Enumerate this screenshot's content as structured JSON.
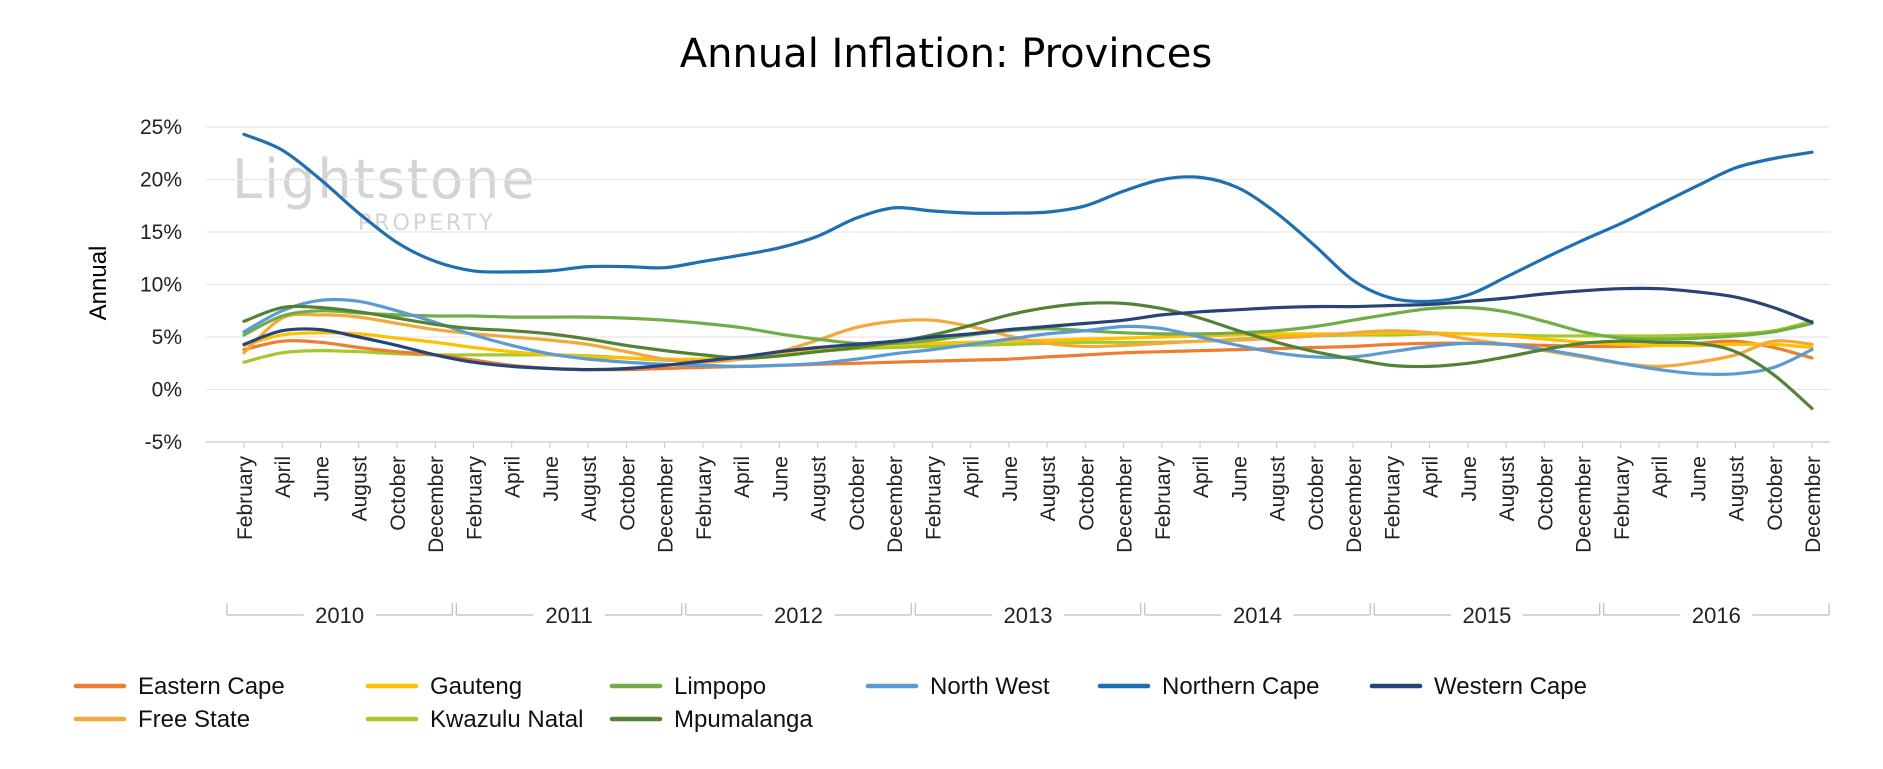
{
  "watermark": {
    "line1": "Lightstone",
    "line2": "PROPERTY"
  },
  "chart_data": {
    "type": "line",
    "title": "Annual Inflation: Provinces",
    "ylabel": "Annual",
    "xlabel": "",
    "ylim": [
      -5,
      25
    ],
    "yticks": [
      25,
      20,
      15,
      10,
      5,
      0,
      -5
    ],
    "ytick_labels": [
      "25%",
      "20%",
      "15%",
      "10%",
      "5%",
      "0%",
      "-5%"
    ],
    "grid": true,
    "legend_position": "bottom",
    "months": [
      "February",
      "April",
      "June",
      "August",
      "October",
      "December"
    ],
    "years": [
      "2010",
      "2011",
      "2012",
      "2013",
      "2014",
      "2015",
      "2016"
    ],
    "x": [
      "Feb 2010",
      "Apr 2010",
      "Jun 2010",
      "Aug 2010",
      "Oct 2010",
      "Dec 2010",
      "Feb 2011",
      "Apr 2011",
      "Jun 2011",
      "Aug 2011",
      "Oct 2011",
      "Dec 2011",
      "Feb 2012",
      "Apr 2012",
      "Jun 2012",
      "Aug 2012",
      "Oct 2012",
      "Dec 2012",
      "Feb 2013",
      "Apr 2013",
      "Jun 2013",
      "Aug 2013",
      "Oct 2013",
      "Dec 2013",
      "Feb 2014",
      "Apr 2014",
      "Jun 2014",
      "Aug 2014",
      "Oct 2014",
      "Dec 2014",
      "Feb 2015",
      "Apr 2015",
      "Jun 2015",
      "Aug 2015",
      "Oct 2015",
      "Dec 2015",
      "Feb 2016",
      "Apr 2016",
      "Jun 2016",
      "Aug 2016",
      "Oct 2016",
      "Dec 2016"
    ],
    "series": [
      {
        "name": "Eastern Cape",
        "color": "#ED7D31",
        "values": [
          3.8,
          4.6,
          4.5,
          4.0,
          3.6,
          3.3,
          2.8,
          2.3,
          2.0,
          1.9,
          1.9,
          2.0,
          2.1,
          2.2,
          2.3,
          2.4,
          2.5,
          2.6,
          2.7,
          2.8,
          2.9,
          3.1,
          3.3,
          3.5,
          3.6,
          3.7,
          3.8,
          3.9,
          4.0,
          4.1,
          4.3,
          4.4,
          4.4,
          4.3,
          4.2,
          4.1,
          4.1,
          4.2,
          4.4,
          4.6,
          4.0,
          3.0
        ]
      },
      {
        "name": "Gauteng",
        "color": "#FFC000",
        "values": [
          4.2,
          5.2,
          5.4,
          5.3,
          4.9,
          4.5,
          4.0,
          3.6,
          3.3,
          3.1,
          3.0,
          2.9,
          2.9,
          3.1,
          3.4,
          3.8,
          4.1,
          4.3,
          4.4,
          4.5,
          4.6,
          4.7,
          4.8,
          4.9,
          5.0,
          5.1,
          5.2,
          5.3,
          5.3,
          5.3,
          5.4,
          5.4,
          5.3,
          5.1,
          4.8,
          4.5,
          4.3,
          4.2,
          4.2,
          4.3,
          4.3,
          4.0
        ]
      },
      {
        "name": "Limpopo",
        "color": "#70AD47",
        "values": [
          5.2,
          7.0,
          7.5,
          7.3,
          7.1,
          7.0,
          7.0,
          6.9,
          6.9,
          6.9,
          6.8,
          6.6,
          6.3,
          5.9,
          5.3,
          4.8,
          4.4,
          4.4,
          4.7,
          5.2,
          5.6,
          5.8,
          5.6,
          5.4,
          5.3,
          5.3,
          5.4,
          5.6,
          6.0,
          6.6,
          7.2,
          7.7,
          7.8,
          7.4,
          6.5,
          5.5,
          4.9,
          4.8,
          4.9,
          5.1,
          5.5,
          6.3
        ]
      },
      {
        "name": "North West",
        "color": "#5B9BD5",
        "values": [
          5.5,
          7.5,
          8.5,
          8.4,
          7.5,
          6.4,
          5.2,
          4.2,
          3.4,
          2.9,
          2.6,
          2.4,
          2.3,
          2.2,
          2.3,
          2.5,
          2.9,
          3.4,
          3.8,
          4.3,
          4.8,
          5.3,
          5.6,
          6.0,
          5.8,
          5.0,
          4.2,
          3.5,
          3.1,
          3.1,
          3.6,
          4.1,
          4.4,
          4.3,
          3.8,
          3.2,
          2.5,
          1.9,
          1.5,
          1.5,
          2.1,
          3.8
        ]
      },
      {
        "name": "Northern Cape",
        "color": "#1F6FB2",
        "values": [
          24.3,
          22.8,
          20.0,
          16.8,
          14.0,
          12.2,
          11.3,
          11.2,
          11.3,
          11.7,
          11.7,
          11.6,
          12.2,
          12.8,
          13.5,
          14.6,
          16.3,
          17.3,
          17.0,
          16.8,
          16.8,
          16.9,
          17.5,
          18.9,
          20.0,
          20.2,
          19.2,
          16.8,
          13.7,
          10.4,
          8.7,
          8.4,
          9.0,
          10.7,
          12.5,
          14.2,
          15.8,
          17.6,
          19.4,
          21.1,
          22.0,
          22.6
        ]
      },
      {
        "name": "Western Cape",
        "color": "#264478",
        "values": [
          4.3,
          5.6,
          5.7,
          5.0,
          4.2,
          3.3,
          2.6,
          2.2,
          2.0,
          1.9,
          2.0,
          2.3,
          2.7,
          3.1,
          3.6,
          4.0,
          4.3,
          4.6,
          5.0,
          5.3,
          5.7,
          6.0,
          6.3,
          6.6,
          7.1,
          7.4,
          7.6,
          7.8,
          7.9,
          7.9,
          8.0,
          8.1,
          8.4,
          8.7,
          9.1,
          9.4,
          9.6,
          9.6,
          9.3,
          8.8,
          7.8,
          6.4
        ]
      },
      {
        "name": "Free State",
        "color": "#F4A83A",
        "values": [
          3.5,
          6.8,
          7.1,
          6.9,
          6.3,
          5.7,
          5.3,
          5.0,
          4.7,
          4.3,
          3.6,
          2.9,
          2.6,
          2.9,
          3.6,
          4.7,
          5.9,
          6.5,
          6.6,
          6.0,
          5.1,
          4.4,
          4.1,
          4.2,
          4.4,
          4.6,
          4.7,
          4.9,
          5.1,
          5.4,
          5.6,
          5.4,
          4.8,
          4.3,
          3.7,
          3.1,
          2.5,
          2.2,
          2.6,
          3.3,
          4.6,
          4.3
        ]
      },
      {
        "name": "Kwazulu Natal",
        "color": "#A5C92B",
        "values": [
          2.6,
          3.5,
          3.7,
          3.6,
          3.4,
          3.3,
          3.3,
          3.3,
          3.3,
          3.2,
          3.0,
          2.8,
          2.7,
          2.9,
          3.2,
          3.6,
          3.9,
          4.0,
          4.1,
          4.2,
          4.3,
          4.4,
          4.5,
          4.5,
          4.5,
          4.6,
          4.8,
          5.0,
          5.1,
          5.2,
          5.2,
          5.3,
          5.3,
          5.2,
          5.1,
          5.1,
          5.1,
          5.1,
          5.2,
          5.3,
          5.6,
          6.5
        ]
      },
      {
        "name": "Mpumalanga",
        "color": "#548235",
        "values": [
          6.5,
          7.8,
          7.8,
          7.4,
          6.8,
          6.2,
          5.8,
          5.6,
          5.3,
          4.8,
          4.2,
          3.7,
          3.3,
          3.0,
          3.2,
          3.6,
          4.0,
          4.5,
          5.2,
          6.1,
          7.1,
          7.8,
          8.2,
          8.2,
          7.7,
          6.8,
          5.6,
          4.5,
          3.6,
          2.9,
          2.3,
          2.2,
          2.5,
          3.1,
          3.8,
          4.4,
          4.6,
          4.5,
          4.4,
          3.6,
          1.4,
          -1.8
        ]
      }
    ]
  }
}
